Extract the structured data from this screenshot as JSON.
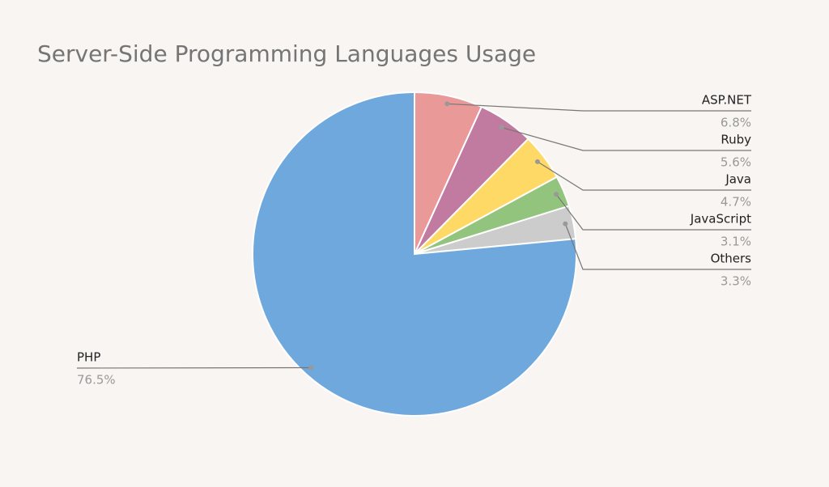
{
  "chart_data": {
    "type": "pie",
    "title": "Server-Side Programming Languages Usage",
    "categories": [
      "ASP.NET",
      "Ruby",
      "Java",
      "JavaScript",
      "Others",
      "PHP"
    ],
    "values": [
      6.8,
      5.6,
      4.7,
      3.1,
      3.3,
      76.5
    ],
    "value_labels": [
      "6.8%",
      "5.6%",
      "4.7%",
      "3.1%",
      "3.3%",
      "76.5%"
    ],
    "colors": [
      "#ea9999",
      "#c27ba0",
      "#ffd966",
      "#93c47d",
      "#cccccc",
      "#6fa8dc"
    ]
  }
}
